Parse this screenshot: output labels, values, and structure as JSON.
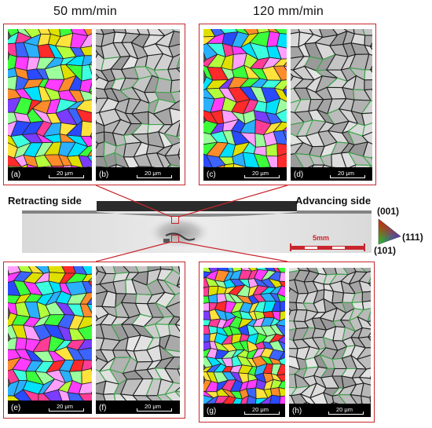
{
  "header": {
    "speed_left": "50 mm/min",
    "speed_right": "120 mm/min"
  },
  "cross_section": {
    "retracting_label": "Retracting side",
    "advancing_label": "Advancing side",
    "scale_label": "5mm"
  },
  "ipf_legend": {
    "label_001": "(001)",
    "label_111": "(111)",
    "label_101": "(101)"
  },
  "panels": [
    {
      "letter": "(a)",
      "scale": "20 μm",
      "kind": "ipf"
    },
    {
      "letter": "(b)",
      "scale": "20 μm",
      "kind": "grain"
    },
    {
      "letter": "(c)",
      "scale": "20 μm",
      "kind": "ipf"
    },
    {
      "letter": "(d)",
      "scale": "20 μm",
      "kind": "grain"
    },
    {
      "letter": "(e)",
      "scale": "20 μm",
      "kind": "ipf"
    },
    {
      "letter": "(f)",
      "scale": "20 μm",
      "kind": "grain"
    },
    {
      "letter": "(g)",
      "scale": "20 μm",
      "kind": "ipf"
    },
    {
      "letter": "(h)",
      "scale": "20 μm",
      "kind": "grain"
    }
  ],
  "colors": {
    "frame": "#c8262c",
    "ipf_palette": [
      "#ff2a2a",
      "#2ab0ff",
      "#3cff3c",
      "#ff3cff",
      "#ffe23c",
      "#7a3cff",
      "#3cffe0",
      "#ff8c2a",
      "#2a4aff",
      "#b4ff3c",
      "#ff3c96",
      "#3c64ff",
      "#9cff9c",
      "#ffa0ff",
      "#00e0ff",
      "#e0e000"
    ]
  }
}
